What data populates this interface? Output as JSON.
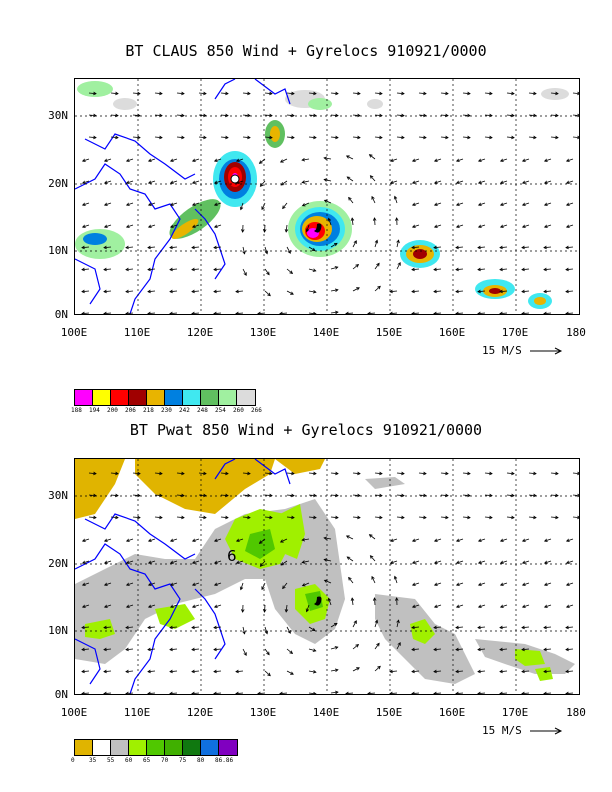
{
  "panels": [
    {
      "title": "BT CLAUS 850 Wind + Gyrelocs 910921/0000",
      "y_labels": [
        "30N",
        "20N",
        "10N",
        "0N"
      ],
      "x_labels": [
        "100E",
        "110E",
        "120E",
        "130E",
        "140E",
        "150E",
        "160E",
        "170E",
        "180"
      ],
      "scale_label": "15 M/S",
      "colorbar": {
        "colors": [
          "#ff00ff",
          "#ffff00",
          "#ff0000",
          "#a00000",
          "#e8b400",
          "#0080e0",
          "#40e8f0",
          "#60c060",
          "#a0f0a0",
          "#dcdcdc"
        ],
        "labels": [
          "188",
          "194",
          "200",
          "206",
          "218",
          "230",
          "242",
          "248",
          "254",
          "260",
          "266"
        ]
      }
    },
    {
      "title": "BT Pwat 850 Wind + Gyrelocs 910921/0000",
      "y_labels": [
        "30N",
        "20N",
        "10N",
        "0N"
      ],
      "x_labels": [
        "100E",
        "110E",
        "120E",
        "130E",
        "140E",
        "150E",
        "160E",
        "170E",
        "180"
      ],
      "scale_label": "15 M/S",
      "storm_label": "6",
      "colorbar": {
        "colors": [
          "#e0b400",
          "#ffffff",
          "#c0c0c0",
          "#a0f000",
          "#50c800",
          "#40b000",
          "#107810",
          "#1070e0",
          "#8000c0"
        ],
        "labels": [
          "0",
          "35",
          "55",
          "60",
          "65",
          "70",
          "75",
          "80",
          "86.86"
        ]
      }
    }
  ]
}
